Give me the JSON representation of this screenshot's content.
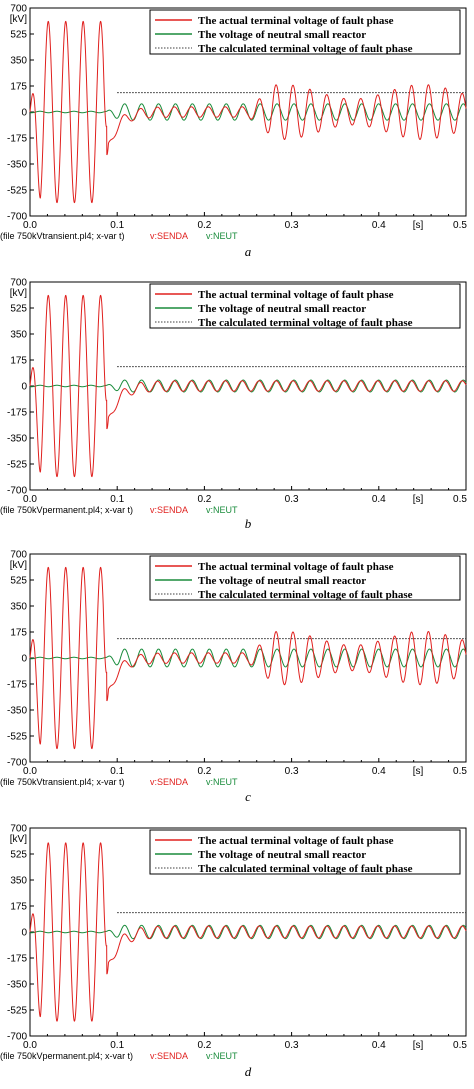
{
  "chart_data": [
    {
      "panel_label": "a",
      "type": "line",
      "x_unit": "[s]",
      "y_unit": "[kV]",
      "xlim": [
        0,
        0.5
      ],
      "ylim": [
        -700,
        700
      ],
      "x_ticks": [
        "0.0",
        "0.1",
        "0.2",
        "0.3",
        "0.4",
        "0.5"
      ],
      "y_ticks": [
        "700",
        "525",
        "350",
        "175",
        "0",
        "-175",
        "-350",
        "-525",
        "-700"
      ],
      "legend": [
        {
          "text": "The actual terminal voltage of fault phase",
          "color": "#e0201e",
          "style": "solid"
        },
        {
          "text": "The voltage of neutral  small reactor",
          "color": "#1a8c3c",
          "style": "solid"
        },
        {
          "text": "The calculated terminal voltage of fault phase",
          "color": "#000000",
          "style": "dotted"
        }
      ],
      "footer": {
        "file": "(file 750kVtransient.pl4; x-var t)",
        "var1": "v:SENDA",
        "var2": "v:NEUT"
      },
      "threshold_kv": 130,
      "frequency_hz": 50,
      "fault_phase": {
        "pre_fault_amplitude_kv": 610,
        "clear_time_s": 0.088,
        "dip_at_clear_kv": -280,
        "post_amplitude_kv": 35,
        "growth_start_s": 0.25,
        "peak_amplitude_kv": 185,
        "beat_period_s": 0.16
      },
      "neutral": {
        "pre_fault_amplitude_kv": 5,
        "amplitude_kv": 55
      }
    },
    {
      "panel_label": "b",
      "type": "line",
      "x_unit": "[s]",
      "y_unit": "[kV]",
      "xlim": [
        0,
        0.5
      ],
      "ylim": [
        -700,
        700
      ],
      "x_ticks": [
        "0.0",
        "0.1",
        "0.2",
        "0.3",
        "0.4",
        "0.5"
      ],
      "y_ticks": [
        "700",
        "525",
        "350",
        "175",
        "0",
        "-175",
        "-350",
        "-525",
        "-700"
      ],
      "legend": [
        {
          "text": "The actual terminal voltage of fault phase",
          "color": "#e0201e",
          "style": "solid"
        },
        {
          "text": "The voltage of neutral  small reactor",
          "color": "#1a8c3c",
          "style": "solid"
        },
        {
          "text": "The calculated terminal voltage of fault phase",
          "color": "#000000",
          "style": "dotted"
        }
      ],
      "footer": {
        "file": "(file 750kVpermanent.pl4; x-var t)",
        "var1": "v:SENDA",
        "var2": "v:NEUT"
      },
      "threshold_kv": 130,
      "frequency_hz": 50,
      "fault_phase": {
        "pre_fault_amplitude_kv": 610,
        "clear_time_s": 0.088,
        "dip_at_clear_kv": -280,
        "post_amplitude_kv": 35,
        "growth_start_s": null,
        "peak_amplitude_kv": 35,
        "beat_period_s": null
      },
      "neutral": {
        "pre_fault_amplitude_kv": 5,
        "amplitude_kv": 40
      }
    },
    {
      "panel_label": "c",
      "type": "line",
      "x_unit": "[s]",
      "y_unit": "[kV]",
      "xlim": [
        0,
        0.5
      ],
      "ylim": [
        -700,
        700
      ],
      "x_ticks": [
        "0.0",
        "0.1",
        "0.2",
        "0.3",
        "0.4",
        "0.5"
      ],
      "y_ticks": [
        "700",
        "525",
        "350",
        "175",
        "0",
        "-175",
        "-350",
        "-525",
        "-700"
      ],
      "legend": [
        {
          "text": "The actual terminal voltage of fault phase",
          "color": "#e0201e",
          "style": "solid"
        },
        {
          "text": "The voltage of neutral  small reactor",
          "color": "#1a8c3c",
          "style": "solid"
        },
        {
          "text": "The calculated terminal voltage of fault phase",
          "color": "#000000",
          "style": "dotted"
        }
      ],
      "footer": {
        "file": "(file 750kVtransient.pl4; x-var t)",
        "var1": "v:SENDA",
        "var2": "v:NEUT"
      },
      "threshold_kv": 130,
      "frequency_hz": 50,
      "fault_phase": {
        "pre_fault_amplitude_kv": 610,
        "clear_time_s": 0.088,
        "dip_at_clear_kv": -280,
        "post_amplitude_kv": 35,
        "growth_start_s": 0.25,
        "peak_amplitude_kv": 180,
        "beat_period_s": 0.16
      },
      "neutral": {
        "pre_fault_amplitude_kv": 5,
        "amplitude_kv": 60
      }
    },
    {
      "panel_label": "d",
      "type": "line",
      "x_unit": "[s]",
      "y_unit": "[kV]",
      "xlim": [
        0,
        0.5
      ],
      "ylim": [
        -700,
        700
      ],
      "x_ticks": [
        "0.0",
        "0.1",
        "0.2",
        "0.3",
        "0.4",
        "0.5"
      ],
      "y_ticks": [
        "700",
        "525",
        "350",
        "175",
        "0",
        "-175",
        "-350",
        "-525",
        "-700"
      ],
      "legend": [
        {
          "text": "The actual terminal voltage of fault phase",
          "color": "#e0201e",
          "style": "solid"
        },
        {
          "text": "The voltage of neutral  small reactor",
          "color": "#1a8c3c",
          "style": "solid"
        },
        {
          "text": "The calculated terminal voltage of fault phase",
          "color": "#000000",
          "style": "dotted"
        }
      ],
      "footer": {
        "file": "(file 750kVpermanent.pl4; x-var t)",
        "var1": "v:SENDA",
        "var2": "v:NEUT"
      },
      "threshold_kv": 130,
      "frequency_hz": 50,
      "fault_phase": {
        "pre_fault_amplitude_kv": 600,
        "clear_time_s": 0.088,
        "dip_at_clear_kv": -280,
        "post_amplitude_kv": 40,
        "growth_start_s": null,
        "peak_amplitude_kv": 40,
        "beat_period_s": null
      },
      "neutral": {
        "pre_fault_amplitude_kv": 5,
        "amplitude_kv": 45
      }
    }
  ]
}
